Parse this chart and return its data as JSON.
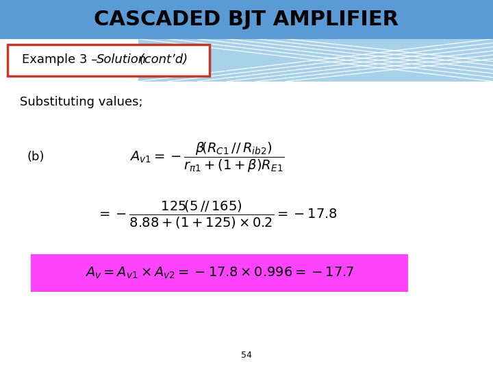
{
  "title": "CASCADED BJT AMPLIFIER",
  "title_bg": "#5b9bd5",
  "title_color": "black",
  "title_fontsize": 22,
  "subtitle_normal": "Example 3 – ",
  "subtitle_italic1": "Solution",
  "subtitle_italic2": " (cont’d)",
  "subtitle_bg": "white",
  "subtitle_border": "#c0392b",
  "bg_color": "white",
  "body_text": "Substituting values;",
  "label_b": "(b)",
  "eq2_bg": "#ff44ff",
  "page_num": "54"
}
